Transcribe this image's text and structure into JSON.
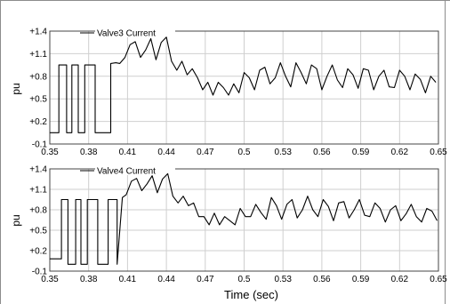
{
  "chart_data": [
    {
      "type": "line",
      "title": "",
      "legend": "Valve3 Current",
      "legend_position": "top-left",
      "xlabel": "",
      "ylabel": "pu",
      "xlim": [
        0.35,
        0.65
      ],
      "ylim": [
        -0.1,
        1.4
      ],
      "x_ticks": [
        "0.35",
        "0.38",
        "0.41",
        "0.44",
        "0.47",
        "0.5",
        "0.53",
        "0.56",
        "0.59",
        "0.62",
        "0.65"
      ],
      "y_ticks": [
        "-0.1",
        "+0.2",
        "+0.5",
        "+0.8",
        "+1.1",
        "+1.4"
      ],
      "grid": true,
      "series": [
        {
          "name": "Valve3 Current",
          "color": "#000000",
          "x": [
            0.35,
            0.357,
            0.357,
            0.363,
            0.363,
            0.367,
            0.367,
            0.372,
            0.372,
            0.377,
            0.377,
            0.385,
            0.385,
            0.397,
            0.397,
            0.401,
            0.404,
            0.408,
            0.412,
            0.416,
            0.42,
            0.424,
            0.428,
            0.432,
            0.436,
            0.44,
            0.444,
            0.448,
            0.452,
            0.456,
            0.46,
            0.464,
            0.468,
            0.472,
            0.476,
            0.48,
            0.484,
            0.488,
            0.492,
            0.496,
            0.5,
            0.504,
            0.508,
            0.512,
            0.516,
            0.52,
            0.524,
            0.528,
            0.532,
            0.536,
            0.54,
            0.544,
            0.548,
            0.552,
            0.556,
            0.56,
            0.564,
            0.568,
            0.572,
            0.576,
            0.58,
            0.584,
            0.588,
            0.592,
            0.596,
            0.6,
            0.604,
            0.608,
            0.612,
            0.616,
            0.62,
            0.624,
            0.628,
            0.632,
            0.636,
            0.64,
            0.644,
            0.648
          ],
          "values": [
            0.05,
            0.05,
            0.95,
            0.95,
            0.05,
            0.05,
            0.95,
            0.95,
            0.05,
            0.05,
            0.95,
            0.95,
            0.05,
            0.05,
            0.97,
            0.98,
            0.97,
            1.05,
            1.22,
            1.26,
            1.05,
            1.15,
            1.3,
            1.02,
            1.25,
            1.32,
            1.0,
            0.88,
            1.0,
            0.82,
            0.9,
            0.78,
            0.62,
            0.72,
            0.55,
            0.72,
            0.65,
            0.55,
            0.7,
            0.58,
            0.85,
            0.78,
            0.62,
            0.88,
            0.92,
            0.7,
            0.78,
            0.98,
            0.8,
            0.66,
            0.98,
            0.85,
            0.7,
            0.95,
            0.9,
            0.62,
            0.8,
            0.95,
            0.75,
            0.65,
            0.9,
            0.82,
            0.64,
            0.9,
            0.88,
            0.62,
            0.8,
            0.88,
            0.66,
            0.65,
            0.88,
            0.8,
            0.62,
            0.83,
            0.76,
            0.58,
            0.8,
            0.72
          ]
        }
      ]
    },
    {
      "type": "line",
      "title": "",
      "legend": "Valve4 Current",
      "legend_position": "top-left",
      "xlabel": "Time (sec)",
      "ylabel": "pu",
      "xlim": [
        0.35,
        0.65
      ],
      "ylim": [
        -0.1,
        1.4
      ],
      "x_ticks": [
        "0.35",
        "0.38",
        "0.41",
        "0.44",
        "0.47",
        "0.5",
        "0.53",
        "0.56",
        "0.59",
        "0.62",
        "0.65"
      ],
      "y_ticks": [
        "-0.1",
        "+0.2",
        "+0.5",
        "+0.8",
        "+1.1",
        "+1.4"
      ],
      "grid": true,
      "series": [
        {
          "name": "Valve4 Current",
          "color": "#000000",
          "x": [
            0.35,
            0.359,
            0.359,
            0.364,
            0.364,
            0.37,
            0.37,
            0.374,
            0.374,
            0.379,
            0.379,
            0.387,
            0.387,
            0.395,
            0.395,
            0.402,
            0.402,
            0.406,
            0.409,
            0.413,
            0.417,
            0.421,
            0.425,
            0.429,
            0.433,
            0.437,
            0.441,
            0.445,
            0.449,
            0.453,
            0.457,
            0.461,
            0.465,
            0.469,
            0.473,
            0.477,
            0.481,
            0.485,
            0.489,
            0.493,
            0.497,
            0.501,
            0.505,
            0.509,
            0.513,
            0.517,
            0.521,
            0.525,
            0.529,
            0.533,
            0.537,
            0.541,
            0.545,
            0.549,
            0.553,
            0.557,
            0.561,
            0.565,
            0.569,
            0.573,
            0.577,
            0.581,
            0.585,
            0.589,
            0.593,
            0.597,
            0.601,
            0.605,
            0.609,
            0.613,
            0.617,
            0.621,
            0.625,
            0.629,
            0.633,
            0.637,
            0.641,
            0.645,
            0.649
          ],
          "values": [
            0.08,
            0.08,
            0.95,
            0.95,
            0.0,
            0.0,
            0.95,
            0.95,
            0.0,
            0.0,
            0.95,
            0.95,
            0.0,
            0.0,
            0.95,
            0.95,
            0.0,
            0.98,
            1.02,
            1.22,
            1.26,
            1.08,
            1.18,
            1.3,
            1.05,
            1.25,
            1.33,
            1.0,
            0.9,
            1.0,
            0.86,
            0.9,
            0.7,
            0.7,
            0.58,
            0.75,
            0.58,
            0.7,
            0.64,
            0.58,
            0.82,
            0.7,
            0.7,
            0.88,
            0.76,
            0.66,
            0.98,
            0.86,
            0.66,
            0.88,
            0.95,
            0.68,
            0.8,
            1.0,
            0.8,
            0.7,
            0.95,
            0.85,
            0.64,
            0.9,
            0.92,
            0.68,
            0.8,
            0.95,
            0.72,
            0.7,
            0.9,
            0.82,
            0.62,
            0.8,
            0.86,
            0.64,
            0.74,
            0.88,
            0.7,
            0.62,
            0.82,
            0.78,
            0.64
          ]
        }
      ]
    }
  ]
}
